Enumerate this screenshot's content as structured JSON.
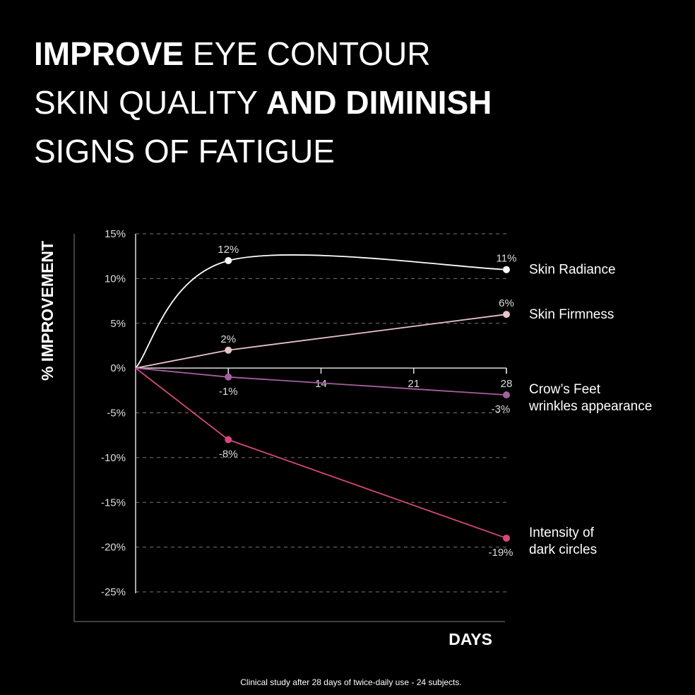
{
  "chart_data": {
    "type": "line",
    "title_lines": [
      [
        {
          "text": "IMPROVE",
          "bold": true
        },
        {
          "text": " EYE CONTOUR",
          "bold": false
        }
      ],
      [
        {
          "text": "SKIN QUALITY ",
          "bold": false
        },
        {
          "text": "AND DIMINISH",
          "bold": true
        }
      ],
      [
        {
          "text": "SIGNS OF FATIGUE",
          "bold": false
        }
      ]
    ],
    "y_label": "% IMPROVEMENT",
    "x_label": "DAYS",
    "footnote": "Clinical study after 28 days of twice-daily use - 24 subjects.",
    "x": [
      0,
      7,
      28
    ],
    "xlim": [
      0,
      28
    ],
    "xticks": [
      14,
      21,
      28
    ],
    "ylim": [
      -25,
      15
    ],
    "yticks": [
      {
        "value": -25,
        "label": "-25%"
      },
      {
        "value": -20,
        "label": "-20%"
      },
      {
        "value": -15,
        "label": "-15%"
      },
      {
        "value": -10,
        "label": "-10%"
      },
      {
        "value": -5,
        "label": "-5%"
      },
      {
        "value": 0,
        "label": "0%"
      },
      {
        "value": 5,
        "label": "5%"
      },
      {
        "value": 10,
        "label": "10%"
      },
      {
        "value": 15,
        "label": "15%"
      }
    ],
    "grid": true,
    "series": [
      {
        "name": [
          "Skin Radiance"
        ],
        "color": "#ffffff",
        "smooth": true,
        "values": [
          0,
          12,
          11
        ],
        "value_labels": [
          null,
          "12%",
          "11%"
        ]
      },
      {
        "name": [
          "Skin Firmness"
        ],
        "color": "#e9c4c9",
        "smooth": false,
        "values": [
          0,
          2,
          6
        ],
        "value_labels": [
          null,
          "2%",
          "6%"
        ]
      },
      {
        "name": [
          "Crow’s Feet",
          "wrinkles appearance"
        ],
        "color": "#a65f9f",
        "smooth": false,
        "values": [
          0,
          -1,
          -3
        ],
        "value_labels": [
          null,
          "-1%",
          "-3%"
        ]
      },
      {
        "name": [
          "Intensity of",
          "dark circles"
        ],
        "color": "#d8477c",
        "smooth": false,
        "values": [
          0,
          -8,
          -19
        ],
        "value_labels": [
          null,
          "-8%",
          "-19%"
        ]
      }
    ]
  }
}
